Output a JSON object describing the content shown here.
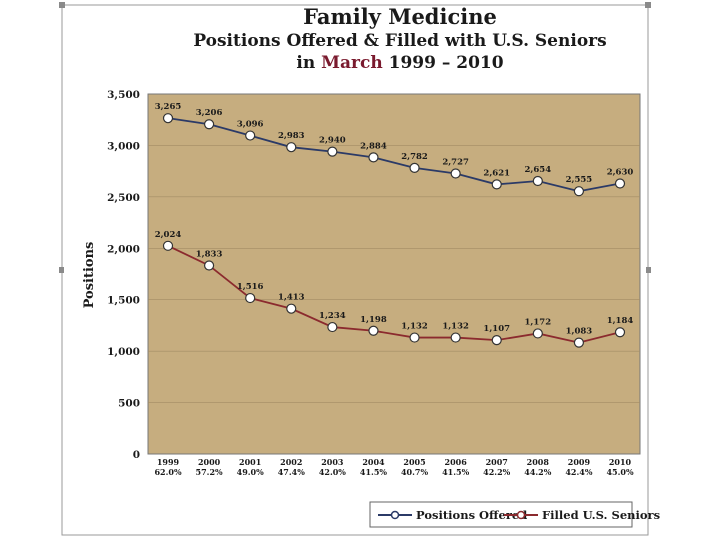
{
  "title": {
    "line1": "Family Medicine",
    "line2": "Positions Offered & Filled with U.S. Seniors",
    "line3_prefix": "in",
    "line3_accent": "March",
    "line3_suffix": "1999 – 2010"
  },
  "colors": {
    "plot_bg": "#c6ad7f",
    "offered": "#2b3a67",
    "filled": "#8b2a2e",
    "marker_fill": "#ffffff"
  },
  "chart_data": {
    "type": "line",
    "title": "Family Medicine — Positions Offered & Filled with U.S. Seniors in March 1999 – 2010",
    "xlabel": "",
    "ylabel": "Positions",
    "ylim": [
      0,
      3500
    ],
    "yticks": [
      "0",
      "500",
      "1,000",
      "1,500",
      "2,000",
      "2,500",
      "3,000",
      "3,500"
    ],
    "ytick_values": [
      0,
      500,
      1000,
      1500,
      2000,
      2500,
      3000,
      3500
    ],
    "categories": [
      "1999",
      "2000",
      "2001",
      "2002",
      "2003",
      "2004",
      "2005",
      "2006",
      "2007",
      "2008",
      "2009",
      "2010"
    ],
    "percent_filled": [
      "62.0%",
      "57.2%",
      "49.0%",
      "47.4%",
      "42.0%",
      "41.5%",
      "40.7%",
      "41.5%",
      "42.2%",
      "44.2%",
      "42.4%",
      "45.0%"
    ],
    "series": [
      {
        "name": "Positions Offered",
        "values": [
          3265,
          3206,
          3096,
          2983,
          2940,
          2884,
          2782,
          2727,
          2621,
          2654,
          2555,
          2630
        ],
        "labels": [
          "3,265",
          "3,206",
          "3,096",
          "2,983",
          "2,940",
          "2,884",
          "2,782",
          "2,727",
          "2,621",
          "2,654",
          "2,555",
          "2,630"
        ]
      },
      {
        "name": "Filled U.S. Seniors",
        "values": [
          2024,
          1833,
          1516,
          1413,
          1234,
          1198,
          1132,
          1132,
          1107,
          1172,
          1083,
          1184
        ],
        "labels": [
          "2,024",
          "1,833",
          "1,516",
          "1,413",
          "1,234",
          "1,198",
          "1,132",
          "1,132",
          "1,107",
          "1,172",
          "1,083",
          "1,184"
        ]
      }
    ],
    "legend": "bottom-right",
    "grid": true
  }
}
